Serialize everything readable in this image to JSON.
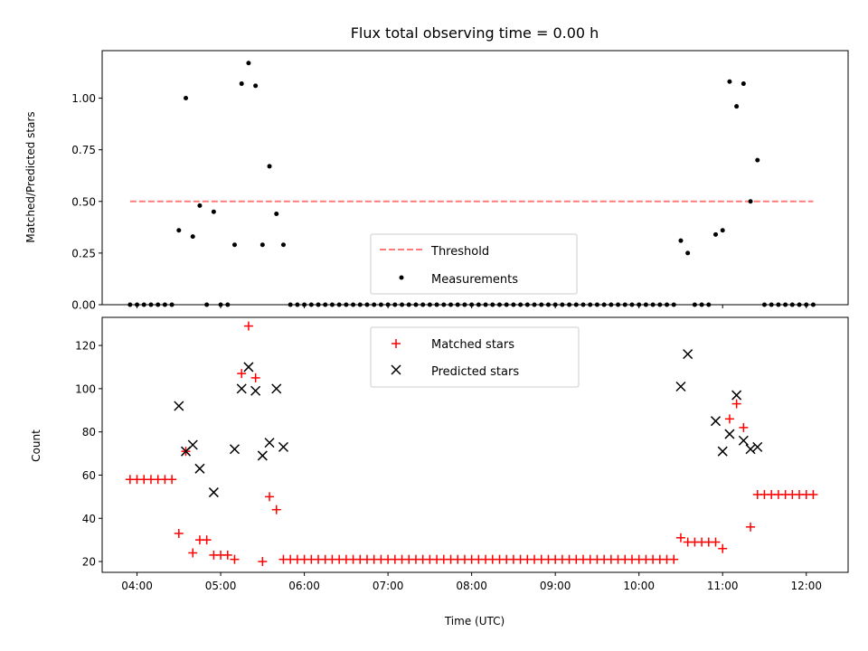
{
  "chart_data": [
    {
      "type": "scatter",
      "title": "Flux total observing time = 0.00 h",
      "xlabel": "",
      "ylabel": "Matched/Predicted stars",
      "xlim": [
        "03:35",
        "12:30"
      ],
      "ylim": [
        0,
        1.23
      ],
      "xticks": [
        "04:00",
        "05:00",
        "06:00",
        "07:00",
        "08:00",
        "09:00",
        "10:00",
        "11:00",
        "12:00"
      ],
      "xtick_labels_visible": false,
      "yticks": [
        0.0,
        0.25,
        0.5,
        0.75,
        1.0
      ],
      "ytick_labels": [
        "0.00",
        "0.25",
        "0.50",
        "0.75",
        "1.00"
      ],
      "legend_position": "lower center",
      "grid": false,
      "series": [
        {
          "name": "Threshold",
          "kind": "line",
          "style": "dashed",
          "color": "#ff7b7b",
          "x": [
            "03:55",
            "12:05"
          ],
          "y": [
            0.5,
            0.5
          ]
        },
        {
          "name": "Measurements",
          "kind": "scatter",
          "marker": "dot",
          "color": "#000000",
          "points": [
            [
              "03:55",
              0.0
            ],
            [
              "04:00",
              0.0
            ],
            [
              "04:05",
              0.0
            ],
            [
              "04:10",
              0.0
            ],
            [
              "04:15",
              0.0
            ],
            [
              "04:20",
              0.0
            ],
            [
              "04:25",
              0.0
            ],
            [
              "04:30",
              0.36
            ],
            [
              "04:35",
              1.0
            ],
            [
              "04:40",
              0.33
            ],
            [
              "04:45",
              0.48
            ],
            [
              "04:50",
              0.0
            ],
            [
              "04:55",
              0.45
            ],
            [
              "05:00",
              0.0
            ],
            [
              "05:05",
              0.0
            ],
            [
              "05:10",
              0.29
            ],
            [
              "05:15",
              1.07
            ],
            [
              "05:20",
              1.17
            ],
            [
              "05:25",
              1.06
            ],
            [
              "05:30",
              0.29
            ],
            [
              "05:35",
              0.67
            ],
            [
              "05:40",
              0.44
            ],
            [
              "05:45",
              0.29
            ],
            [
              "05:50",
              0.0
            ],
            [
              "05:55",
              0.0
            ],
            [
              "06:00",
              0.0
            ],
            [
              "06:05",
              0.0
            ],
            [
              "06:10",
              0.0
            ],
            [
              "06:15",
              0.0
            ],
            [
              "06:20",
              0.0
            ],
            [
              "06:25",
              0.0
            ],
            [
              "06:30",
              0.0
            ],
            [
              "06:35",
              0.0
            ],
            [
              "06:40",
              0.0
            ],
            [
              "06:45",
              0.0
            ],
            [
              "06:50",
              0.0
            ],
            [
              "06:55",
              0.0
            ],
            [
              "07:00",
              0.0
            ],
            [
              "07:05",
              0.0
            ],
            [
              "07:10",
              0.0
            ],
            [
              "07:15",
              0.0
            ],
            [
              "07:20",
              0.0
            ],
            [
              "07:25",
              0.0
            ],
            [
              "07:30",
              0.0
            ],
            [
              "07:35",
              0.0
            ],
            [
              "07:40",
              0.0
            ],
            [
              "07:45",
              0.0
            ],
            [
              "07:50",
              0.0
            ],
            [
              "07:55",
              0.0
            ],
            [
              "08:00",
              0.0
            ],
            [
              "08:05",
              0.0
            ],
            [
              "08:10",
              0.0
            ],
            [
              "08:15",
              0.0
            ],
            [
              "08:20",
              0.0
            ],
            [
              "08:25",
              0.0
            ],
            [
              "08:30",
              0.0
            ],
            [
              "08:35",
              0.0
            ],
            [
              "08:40",
              0.0
            ],
            [
              "08:45",
              0.0
            ],
            [
              "08:50",
              0.0
            ],
            [
              "08:55",
              0.0
            ],
            [
              "09:00",
              0.0
            ],
            [
              "09:05",
              0.0
            ],
            [
              "09:10",
              0.0
            ],
            [
              "09:15",
              0.0
            ],
            [
              "09:20",
              0.0
            ],
            [
              "09:25",
              0.0
            ],
            [
              "09:30",
              0.0
            ],
            [
              "09:35",
              0.0
            ],
            [
              "09:40",
              0.0
            ],
            [
              "09:45",
              0.0
            ],
            [
              "09:50",
              0.0
            ],
            [
              "09:55",
              0.0
            ],
            [
              "10:00",
              0.0
            ],
            [
              "10:05",
              0.0
            ],
            [
              "10:10",
              0.0
            ],
            [
              "10:15",
              0.0
            ],
            [
              "10:20",
              0.0
            ],
            [
              "10:25",
              0.0
            ],
            [
              "10:30",
              0.31
            ],
            [
              "10:35",
              0.25
            ],
            [
              "10:40",
              0.0
            ],
            [
              "10:45",
              0.0
            ],
            [
              "10:50",
              0.0
            ],
            [
              "10:55",
              0.34
            ],
            [
              "11:00",
              0.36
            ],
            [
              "11:05",
              1.08
            ],
            [
              "11:10",
              0.96
            ],
            [
              "11:15",
              1.07
            ],
            [
              "11:20",
              0.5
            ],
            [
              "11:25",
              0.7
            ],
            [
              "11:30",
              0.0
            ],
            [
              "11:35",
              0.0
            ],
            [
              "11:40",
              0.0
            ],
            [
              "11:45",
              0.0
            ],
            [
              "11:50",
              0.0
            ],
            [
              "11:55",
              0.0
            ],
            [
              "12:00",
              0.0
            ],
            [
              "12:05",
              0.0
            ]
          ]
        }
      ]
    },
    {
      "type": "scatter",
      "title": "",
      "xlabel": "Time (UTC)",
      "ylabel": "Count",
      "xlim": [
        "03:35",
        "12:30"
      ],
      "ylim": [
        15,
        133
      ],
      "xticks": [
        "04:00",
        "05:00",
        "06:00",
        "07:00",
        "08:00",
        "09:00",
        "10:00",
        "11:00",
        "12:00"
      ],
      "yticks": [
        20,
        40,
        60,
        80,
        100,
        120
      ],
      "legend_position": "upper center",
      "grid": false,
      "series": [
        {
          "name": "Matched stars",
          "kind": "scatter",
          "marker": "plus",
          "color": "#ff0000",
          "points": [
            [
              "03:55",
              58
            ],
            [
              "04:00",
              58
            ],
            [
              "04:05",
              58
            ],
            [
              "04:10",
              58
            ],
            [
              "04:15",
              58
            ],
            [
              "04:20",
              58
            ],
            [
              "04:25",
              58
            ],
            [
              "04:30",
              33
            ],
            [
              "04:35",
              71
            ],
            [
              "04:40",
              24
            ],
            [
              "04:45",
              30
            ],
            [
              "04:50",
              30
            ],
            [
              "04:55",
              23
            ],
            [
              "05:00",
              23
            ],
            [
              "05:05",
              23
            ],
            [
              "05:10",
              21
            ],
            [
              "05:15",
              107
            ],
            [
              "05:20",
              129
            ],
            [
              "05:25",
              105
            ],
            [
              "05:30",
              20
            ],
            [
              "05:35",
              50
            ],
            [
              "05:40",
              44
            ],
            [
              "05:45",
              21
            ],
            [
              "05:50",
              21
            ],
            [
              "05:55",
              21
            ],
            [
              "06:00",
              21
            ],
            [
              "06:05",
              21
            ],
            [
              "06:10",
              21
            ],
            [
              "06:15",
              21
            ],
            [
              "06:20",
              21
            ],
            [
              "06:25",
              21
            ],
            [
              "06:30",
              21
            ],
            [
              "06:35",
              21
            ],
            [
              "06:40",
              21
            ],
            [
              "06:45",
              21
            ],
            [
              "06:50",
              21
            ],
            [
              "06:55",
              21
            ],
            [
              "07:00",
              21
            ],
            [
              "07:05",
              21
            ],
            [
              "07:10",
              21
            ],
            [
              "07:15",
              21
            ],
            [
              "07:20",
              21
            ],
            [
              "07:25",
              21
            ],
            [
              "07:30",
              21
            ],
            [
              "07:35",
              21
            ],
            [
              "07:40",
              21
            ],
            [
              "07:45",
              21
            ],
            [
              "07:50",
              21
            ],
            [
              "07:55",
              21
            ],
            [
              "08:00",
              21
            ],
            [
              "08:05",
              21
            ],
            [
              "08:10",
              21
            ],
            [
              "08:15",
              21
            ],
            [
              "08:20",
              21
            ],
            [
              "08:25",
              21
            ],
            [
              "08:30",
              21
            ],
            [
              "08:35",
              21
            ],
            [
              "08:40",
              21
            ],
            [
              "08:45",
              21
            ],
            [
              "08:50",
              21
            ],
            [
              "08:55",
              21
            ],
            [
              "09:00",
              21
            ],
            [
              "09:05",
              21
            ],
            [
              "09:10",
              21
            ],
            [
              "09:15",
              21
            ],
            [
              "09:20",
              21
            ],
            [
              "09:25",
              21
            ],
            [
              "09:30",
              21
            ],
            [
              "09:35",
              21
            ],
            [
              "09:40",
              21
            ],
            [
              "09:45",
              21
            ],
            [
              "09:50",
              21
            ],
            [
              "09:55",
              21
            ],
            [
              "10:00",
              21
            ],
            [
              "10:05",
              21
            ],
            [
              "10:10",
              21
            ],
            [
              "10:15",
              21
            ],
            [
              "10:20",
              21
            ],
            [
              "10:25",
              21
            ],
            [
              "10:30",
              31
            ],
            [
              "10:35",
              29
            ],
            [
              "10:40",
              29
            ],
            [
              "10:45",
              29
            ],
            [
              "10:50",
              29
            ],
            [
              "10:55",
              29
            ],
            [
              "11:00",
              26
            ],
            [
              "11:05",
              86
            ],
            [
              "11:10",
              93
            ],
            [
              "11:15",
              82
            ],
            [
              "11:20",
              36
            ],
            [
              "11:25",
              51
            ],
            [
              "11:30",
              51
            ],
            [
              "11:35",
              51
            ],
            [
              "11:40",
              51
            ],
            [
              "11:45",
              51
            ],
            [
              "11:50",
              51
            ],
            [
              "11:55",
              51
            ],
            [
              "12:00",
              51
            ],
            [
              "12:05",
              51
            ]
          ]
        },
        {
          "name": "Predicted stars",
          "kind": "scatter",
          "marker": "x",
          "color": "#000000",
          "points": [
            [
              "04:30",
              92
            ],
            [
              "04:35",
              71
            ],
            [
              "04:40",
              74
            ],
            [
              "04:45",
              63
            ],
            [
              "04:55",
              52
            ],
            [
              "05:10",
              72
            ],
            [
              "05:15",
              100
            ],
            [
              "05:20",
              110
            ],
            [
              "05:25",
              99
            ],
            [
              "05:30",
              69
            ],
            [
              "05:35",
              75
            ],
            [
              "05:40",
              100
            ],
            [
              "05:45",
              73
            ],
            [
              "10:30",
              101
            ],
            [
              "10:35",
              116
            ],
            [
              "10:55",
              85
            ],
            [
              "11:00",
              71
            ],
            [
              "11:05",
              79
            ],
            [
              "11:10",
              97
            ],
            [
              "11:15",
              76
            ],
            [
              "11:20",
              72
            ],
            [
              "11:25",
              73
            ]
          ]
        }
      ]
    }
  ]
}
